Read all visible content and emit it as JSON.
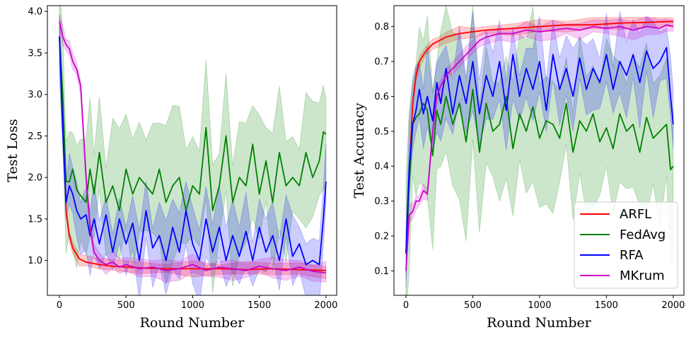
{
  "chart_data": [
    {
      "type": "line",
      "xlabel": "Round Number",
      "ylabel": "Test Loss",
      "xlim": [
        -90,
        2080
      ],
      "ylim": [
        0.58,
        4.07
      ],
      "xticks": [
        0,
        500,
        1000,
        1500,
        2000
      ],
      "yticks": [
        1.0,
        1.5,
        2.0,
        2.5,
        3.0,
        3.5,
        4.0
      ],
      "ytick_labels": [
        "1.0",
        "1.5",
        "2.0",
        "2.5",
        "3.0",
        "3.5",
        "4.0"
      ],
      "series": [
        {
          "name": "ARFL",
          "color": "#ff0000",
          "x": [
            0,
            25,
            50,
            75,
            100,
            150,
            200,
            300,
            400,
            600,
            800,
            1000,
            1200,
            1400,
            1600,
            1800,
            2000
          ],
          "y": [
            3.7,
            2.9,
            1.6,
            1.3,
            1.15,
            1.02,
            0.98,
            0.95,
            0.93,
            0.91,
            0.9,
            0.9,
            0.9,
            0.89,
            0.9,
            0.89,
            0.88
          ],
          "band": 0.07
        },
        {
          "name": "FedAvg",
          "color": "#008000",
          "x": [
            0,
            25,
            50,
            75,
            100,
            130,
            160,
            200,
            230,
            260,
            300,
            350,
            400,
            450,
            500,
            550,
            600,
            650,
            700,
            750,
            800,
            850,
            900,
            950,
            1000,
            1050,
            1100,
            1150,
            1200,
            1250,
            1300,
            1350,
            1400,
            1450,
            1500,
            1550,
            1600,
            1650,
            1700,
            1750,
            1800,
            1850,
            1900,
            1950,
            1980,
            2000
          ],
          "y": [
            3.7,
            3.0,
            1.95,
            1.95,
            2.1,
            1.85,
            1.78,
            1.7,
            2.1,
            1.8,
            2.3,
            1.7,
            1.9,
            1.6,
            2.1,
            1.8,
            2.0,
            1.9,
            1.8,
            2.1,
            1.7,
            1.9,
            2.0,
            1.6,
            1.9,
            1.8,
            2.6,
            1.6,
            1.9,
            2.5,
            1.7,
            2.0,
            1.9,
            2.4,
            1.8,
            2.2,
            1.7,
            2.3,
            1.9,
            2.0,
            1.9,
            2.3,
            2.0,
            2.2,
            2.55,
            2.52
          ],
          "band": 0.7
        },
        {
          "name": "RFA",
          "color": "#0000ff",
          "x": [
            0,
            25,
            50,
            75,
            100,
            130,
            160,
            200,
            230,
            260,
            300,
            350,
            400,
            450,
            500,
            550,
            600,
            650,
            700,
            750,
            800,
            850,
            900,
            950,
            1000,
            1050,
            1100,
            1150,
            1200,
            1250,
            1300,
            1350,
            1400,
            1450,
            1500,
            1550,
            1600,
            1650,
            1700,
            1750,
            1800,
            1850,
            1900,
            1950,
            1980,
            2000
          ],
          "y": [
            3.7,
            2.6,
            1.7,
            1.9,
            1.8,
            1.6,
            1.5,
            1.55,
            1.3,
            1.5,
            1.2,
            1.55,
            1.1,
            1.5,
            1.2,
            1.45,
            1.0,
            1.6,
            1.15,
            1.3,
            1.0,
            1.4,
            1.1,
            1.6,
            1.2,
            1.0,
            1.5,
            1.1,
            1.4,
            1.0,
            1.3,
            1.05,
            1.35,
            1.0,
            1.4,
            1.1,
            1.3,
            1.0,
            1.5,
            1.05,
            1.2,
            0.95,
            1.0,
            0.95,
            1.5,
            1.95
          ],
          "band": 0.35
        },
        {
          "name": "MKrum",
          "color": "#cc00cc",
          "x": [
            0,
            25,
            50,
            75,
            100,
            130,
            160,
            200,
            230,
            260,
            300,
            350,
            400,
            450,
            500,
            600,
            700,
            800,
            900,
            1000,
            1100,
            1200,
            1300,
            1400,
            1500,
            1600,
            1700,
            1800,
            1900,
            2000
          ],
          "y": [
            3.88,
            3.7,
            3.6,
            3.55,
            3.4,
            3.3,
            3.1,
            2.0,
            1.4,
            1.1,
            1.0,
            0.95,
            0.98,
            0.92,
            0.95,
            0.9,
            0.92,
            0.88,
            0.9,
            0.95,
            0.88,
            0.92,
            0.9,
            0.88,
            0.93,
            0.9,
            0.88,
            0.92,
            0.87,
            0.85
          ],
          "band": 0.1
        }
      ]
    },
    {
      "type": "line",
      "xlabel": "Round Number",
      "ylabel": "Test Accuracy",
      "xlim": [
        -90,
        2080
      ],
      "ylim": [
        0.03,
        0.86
      ],
      "xticks": [
        0,
        500,
        1000,
        1500,
        2000
      ],
      "yticks": [
        0.1,
        0.2,
        0.3,
        0.4,
        0.5,
        0.6,
        0.7,
        0.8
      ],
      "ytick_labels": [
        "0.1",
        "0.2",
        "0.3",
        "0.4",
        "0.5",
        "0.6",
        "0.7",
        "0.8"
      ],
      "legend_position": "lower right",
      "legend": [
        "ARFL",
        "FedAvg",
        "RFA",
        "MKrum"
      ],
      "series": [
        {
          "name": "ARFL",
          "color": "#ff0000",
          "x": [
            0,
            25,
            50,
            75,
            100,
            150,
            200,
            250,
            300,
            400,
            500,
            600,
            800,
            1000,
            1200,
            1400,
            1600,
            1800,
            2000
          ],
          "y": [
            0.15,
            0.38,
            0.58,
            0.66,
            0.7,
            0.73,
            0.75,
            0.76,
            0.77,
            0.78,
            0.785,
            0.79,
            0.795,
            0.8,
            0.805,
            0.805,
            0.81,
            0.812,
            0.815
          ],
          "band": 0.015
        },
        {
          "name": "FedAvg",
          "color": "#008000",
          "x": [
            0,
            25,
            50,
            75,
            100,
            130,
            160,
            200,
            230,
            260,
            300,
            350,
            400,
            450,
            500,
            550,
            600,
            650,
            700,
            750,
            800,
            850,
            900,
            950,
            1000,
            1050,
            1100,
            1150,
            1200,
            1250,
            1300,
            1350,
            1400,
            1450,
            1500,
            1550,
            1600,
            1650,
            1700,
            1750,
            1800,
            1850,
            1900,
            1950,
            1980,
            2000
          ],
          "y": [
            0.15,
            0.35,
            0.52,
            0.54,
            0.55,
            0.58,
            0.56,
            0.43,
            0.56,
            0.52,
            0.6,
            0.52,
            0.58,
            0.47,
            0.62,
            0.44,
            0.58,
            0.5,
            0.52,
            0.6,
            0.45,
            0.55,
            0.5,
            0.57,
            0.48,
            0.53,
            0.52,
            0.48,
            0.58,
            0.44,
            0.53,
            0.5,
            0.55,
            0.47,
            0.51,
            0.45,
            0.55,
            0.5,
            0.52,
            0.44,
            0.54,
            0.48,
            0.5,
            0.52,
            0.39,
            0.4
          ],
          "band": 0.2
        },
        {
          "name": "RFA",
          "color": "#0000ff",
          "x": [
            0,
            25,
            50,
            75,
            100,
            130,
            160,
            200,
            230,
            260,
            300,
            350,
            400,
            450,
            500,
            550,
            600,
            650,
            700,
            750,
            800,
            850,
            900,
            950,
            1000,
            1050,
            1100,
            1150,
            1200,
            1250,
            1300,
            1350,
            1400,
            1450,
            1500,
            1550,
            1600,
            1650,
            1700,
            1750,
            1800,
            1850,
            1900,
            1950,
            1980,
            2000
          ],
          "y": [
            0.15,
            0.4,
            0.52,
            0.56,
            0.62,
            0.55,
            0.6,
            0.53,
            0.64,
            0.58,
            0.68,
            0.55,
            0.66,
            0.58,
            0.7,
            0.55,
            0.66,
            0.6,
            0.7,
            0.56,
            0.72,
            0.6,
            0.68,
            0.62,
            0.7,
            0.56,
            0.72,
            0.62,
            0.68,
            0.6,
            0.71,
            0.62,
            0.68,
            0.64,
            0.72,
            0.62,
            0.7,
            0.66,
            0.72,
            0.64,
            0.73,
            0.68,
            0.7,
            0.74,
            0.6,
            0.52
          ],
          "band": 0.1
        },
        {
          "name": "MKrum",
          "color": "#cc00cc",
          "x": [
            0,
            25,
            50,
            75,
            100,
            130,
            160,
            200,
            230,
            260,
            300,
            350,
            400,
            450,
            500,
            550,
            600,
            700,
            800,
            900,
            1000,
            1100,
            1200,
            1300,
            1400,
            1500,
            1600,
            1700,
            1800,
            1900,
            1950,
            2000
          ],
          "y": [
            0.1,
            0.26,
            0.27,
            0.3,
            0.3,
            0.33,
            0.32,
            0.5,
            0.6,
            0.63,
            0.66,
            0.68,
            0.7,
            0.72,
            0.74,
            0.76,
            0.77,
            0.78,
            0.78,
            0.79,
            0.785,
            0.79,
            0.795,
            0.79,
            0.8,
            0.795,
            0.8,
            0.79,
            0.8,
            0.795,
            0.805,
            0.8
          ],
          "band": 0.02
        }
      ]
    }
  ]
}
